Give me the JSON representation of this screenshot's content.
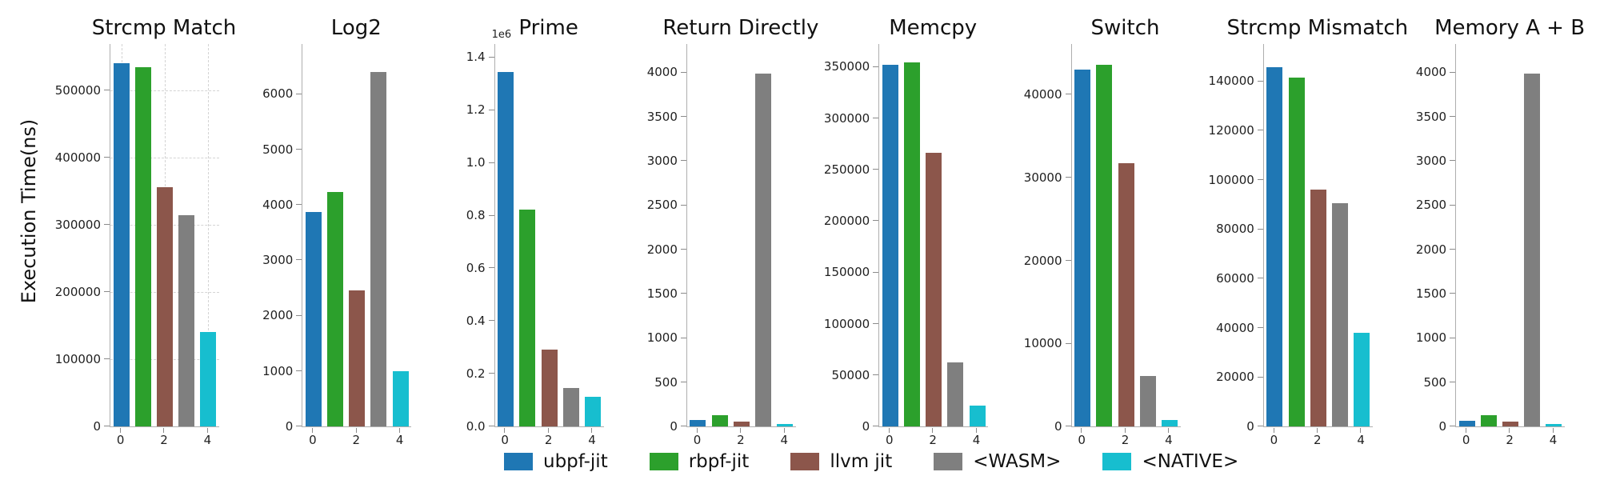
{
  "figure": {
    "ylabel": "Execution Time(ns)"
  },
  "legend": {
    "items": [
      {
        "label": "ubpf-jit",
        "color": "#1f77b4"
      },
      {
        "label": "rbpf-jit",
        "color": "#2ca02c"
      },
      {
        "label": "llvm jit",
        "color": "#8c564b"
      },
      {
        "label": "<WASM>",
        "color": "#7f7f7f"
      },
      {
        "label": "<NATIVE>",
        "color": "#17becf"
      }
    ]
  },
  "chart_data": [
    {
      "type": "bar",
      "title": "Strcmp Match",
      "categories": [
        "ubpf-jit",
        "rbpf-jit",
        "llvm jit",
        "<WASM>",
        "<NATIVE>"
      ],
      "values": [
        541000,
        535000,
        356000,
        314000,
        141000
      ],
      "ylabel": "Execution Time(ns)",
      "ylim": [
        0,
        569000
      ],
      "yticks": [
        {
          "label": "0",
          "v": 0
        },
        {
          "label": "100000",
          "v": 100000
        },
        {
          "label": "200000",
          "v": 200000
        },
        {
          "label": "300000",
          "v": 300000
        },
        {
          "label": "400000",
          "v": 400000
        },
        {
          "label": "500000",
          "v": 500000
        }
      ],
      "xticks": [
        {
          "label": "0",
          "slot": 0
        },
        {
          "label": "2",
          "slot": 2
        },
        {
          "label": "4",
          "slot": 4
        }
      ],
      "grid": true
    },
    {
      "type": "bar",
      "title": "Log2",
      "categories": [
        "ubpf-jit",
        "rbpf-jit",
        "llvm jit",
        "<WASM>",
        "<NATIVE>"
      ],
      "values": [
        3870,
        4230,
        2450,
        6400,
        990
      ],
      "ylabel": "Execution Time(ns)",
      "ylim": [
        0,
        6900
      ],
      "yticks": [
        {
          "label": "0",
          "v": 0
        },
        {
          "label": "1000",
          "v": 1000
        },
        {
          "label": "2000",
          "v": 2000
        },
        {
          "label": "3000",
          "v": 3000
        },
        {
          "label": "4000",
          "v": 4000
        },
        {
          "label": "5000",
          "v": 5000
        },
        {
          "label": "6000",
          "v": 6000
        }
      ],
      "xticks": [
        {
          "label": "0",
          "slot": 0
        },
        {
          "label": "2",
          "slot": 2
        },
        {
          "label": "4",
          "slot": 4
        }
      ],
      "grid": false
    },
    {
      "type": "bar",
      "title": "Prime",
      "categories": [
        "ubpf-jit",
        "rbpf-jit",
        "llvm jit",
        "<WASM>",
        "<NATIVE>"
      ],
      "values": [
        1345000,
        822000,
        292000,
        146000,
        112000
      ],
      "ylabel": "Execution Time(ns)",
      "ylim": [
        0,
        1450000
      ],
      "offset_label": "1e6",
      "yticks": [
        {
          "label": "0.0",
          "v": 0
        },
        {
          "label": "0.2",
          "v": 200000
        },
        {
          "label": "0.4",
          "v": 400000
        },
        {
          "label": "0.6",
          "v": 600000
        },
        {
          "label": "0.8",
          "v": 800000
        },
        {
          "label": "1.0",
          "v": 1000000
        },
        {
          "label": "1.2",
          "v": 1200000
        },
        {
          "label": "1.4",
          "v": 1400000
        }
      ],
      "xticks": [
        {
          "label": "0",
          "slot": 0
        },
        {
          "label": "2",
          "slot": 2
        },
        {
          "label": "4",
          "slot": 4
        }
      ],
      "grid": false
    },
    {
      "type": "bar",
      "title": "Return Directly",
      "categories": [
        "ubpf-jit",
        "rbpf-jit",
        "llvm jit",
        "<WASM>",
        "<NATIVE>"
      ],
      "values": [
        70,
        130,
        50,
        3990,
        30
      ],
      "ylabel": "Execution Time(ns)",
      "ylim": [
        0,
        4320
      ],
      "yticks": [
        {
          "label": "0",
          "v": 0
        },
        {
          "label": "500",
          "v": 500
        },
        {
          "label": "1000",
          "v": 1000
        },
        {
          "label": "1500",
          "v": 1500
        },
        {
          "label": "2000",
          "v": 2000
        },
        {
          "label": "2500",
          "v": 2500
        },
        {
          "label": "3000",
          "v": 3000
        },
        {
          "label": "3500",
          "v": 3500
        },
        {
          "label": "4000",
          "v": 4000
        }
      ],
      "xticks": [
        {
          "label": "0",
          "slot": 0
        },
        {
          "label": "2",
          "slot": 2
        },
        {
          "label": "4",
          "slot": 4
        }
      ],
      "grid": false
    },
    {
      "type": "bar",
      "title": "Memcpy",
      "categories": [
        "ubpf-jit",
        "rbpf-jit",
        "llvm jit",
        "<WASM>",
        "<NATIVE>"
      ],
      "values": [
        352000,
        354000,
        266000,
        62000,
        20000
      ],
      "ylabel": "Execution Time(ns)",
      "ylim": [
        0,
        372000
      ],
      "yticks": [
        {
          "label": "0",
          "v": 0
        },
        {
          "label": "50000",
          "v": 50000
        },
        {
          "label": "100000",
          "v": 100000
        },
        {
          "label": "150000",
          "v": 150000
        },
        {
          "label": "200000",
          "v": 200000
        },
        {
          "label": "250000",
          "v": 250000
        },
        {
          "label": "300000",
          "v": 300000
        },
        {
          "label": "350000",
          "v": 350000
        }
      ],
      "xticks": [
        {
          "label": "0",
          "slot": 0
        },
        {
          "label": "2",
          "slot": 2
        },
        {
          "label": "4",
          "slot": 4
        }
      ],
      "grid": false
    },
    {
      "type": "bar",
      "title": "Switch",
      "categories": [
        "ubpf-jit",
        "rbpf-jit",
        "llvm jit",
        "<WASM>",
        "<NATIVE>"
      ],
      "values": [
        43000,
        43600,
        31700,
        6100,
        800
      ],
      "ylabel": "Execution Time(ns)",
      "ylim": [
        0,
        46100
      ],
      "yticks": [
        {
          "label": "0",
          "v": 0
        },
        {
          "label": "10000",
          "v": 10000
        },
        {
          "label": "20000",
          "v": 20000
        },
        {
          "label": "30000",
          "v": 30000
        },
        {
          "label": "40000",
          "v": 40000
        }
      ],
      "xticks": [
        {
          "label": "0",
          "slot": 0
        },
        {
          "label": "2",
          "slot": 2
        },
        {
          "label": "4",
          "slot": 4
        }
      ],
      "grid": false
    },
    {
      "type": "bar",
      "title": "Strcmp Mismatch",
      "categories": [
        "ubpf-jit",
        "rbpf-jit",
        "llvm jit",
        "<WASM>",
        "<NATIVE>"
      ],
      "values": [
        145500,
        141500,
        96000,
        90500,
        38000
      ],
      "ylabel": "Execution Time(ns)",
      "ylim": [
        0,
        155000
      ],
      "yticks": [
        {
          "label": "0",
          "v": 0
        },
        {
          "label": "20000",
          "v": 20000
        },
        {
          "label": "40000",
          "v": 40000
        },
        {
          "label": "60000",
          "v": 60000
        },
        {
          "label": "80000",
          "v": 80000
        },
        {
          "label": "100000",
          "v": 100000
        },
        {
          "label": "120000",
          "v": 120000
        },
        {
          "label": "140000",
          "v": 140000
        }
      ],
      "xticks": [
        {
          "label": "0",
          "slot": 0
        },
        {
          "label": "2",
          "slot": 2
        },
        {
          "label": "4",
          "slot": 4
        }
      ],
      "grid": false
    },
    {
      "type": "bar",
      "title": "Memory A + B",
      "categories": [
        "ubpf-jit",
        "rbpf-jit",
        "llvm jit",
        "<WASM>",
        "<NATIVE>"
      ],
      "values": [
        65,
        130,
        55,
        3990,
        25
      ],
      "ylabel": "Execution Time(ns)",
      "ylim": [
        0,
        4320
      ],
      "yticks": [
        {
          "label": "0",
          "v": 0
        },
        {
          "label": "500",
          "v": 500
        },
        {
          "label": "1000",
          "v": 1000
        },
        {
          "label": "1500",
          "v": 1500
        },
        {
          "label": "2000",
          "v": 2000
        },
        {
          "label": "2500",
          "v": 2500
        },
        {
          "label": "3000",
          "v": 3000
        },
        {
          "label": "3500",
          "v": 3500
        },
        {
          "label": "4000",
          "v": 4000
        }
      ],
      "xticks": [
        {
          "label": "0",
          "slot": 0
        },
        {
          "label": "2",
          "slot": 2
        },
        {
          "label": "4",
          "slot": 4
        }
      ],
      "grid": false
    }
  ]
}
